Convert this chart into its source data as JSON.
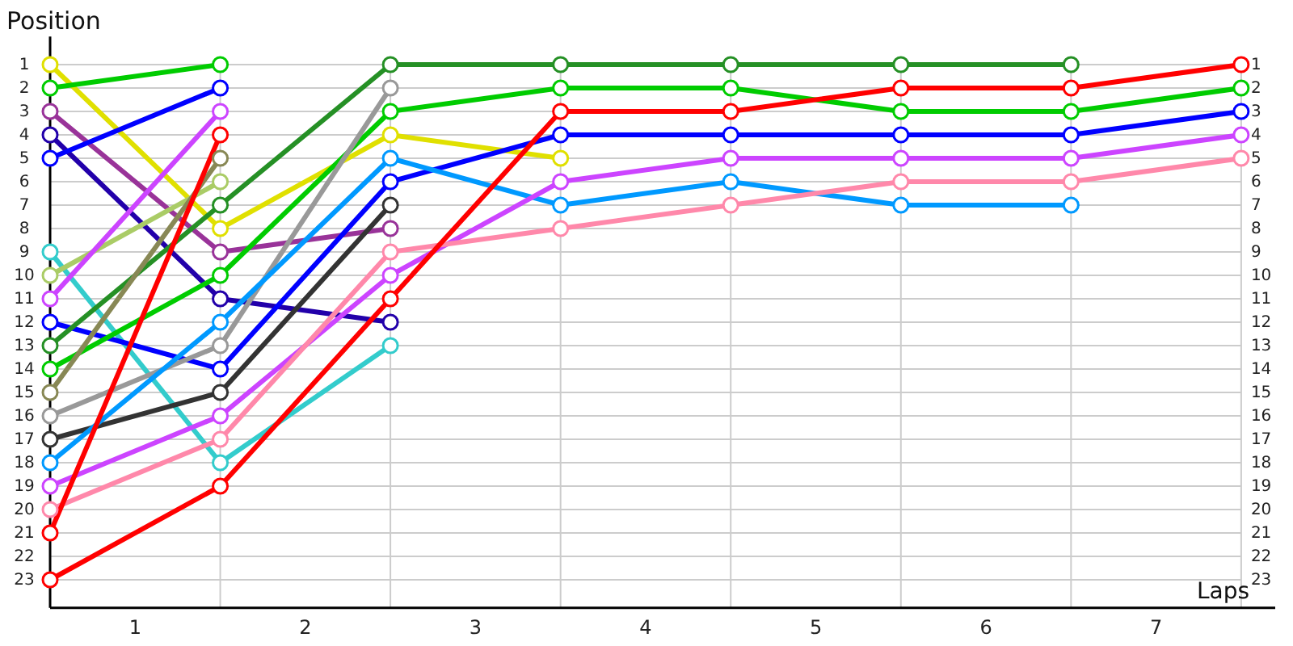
{
  "chart_data": {
    "type": "line",
    "xlabel": "Laps",
    "ylabel": "Position",
    "x": [
      0,
      1,
      2,
      3,
      4,
      5,
      6,
      7
    ],
    "xlim": [
      0,
      7.2
    ],
    "xticks": [
      {
        "value": 0,
        "label": null
      },
      {
        "value": 0.5,
        "label": "1"
      },
      {
        "value": 1,
        "label": null
      },
      {
        "value": 1.5,
        "label": "2"
      },
      {
        "value": 2,
        "label": null
      },
      {
        "value": 2.5,
        "label": "3"
      },
      {
        "value": 3,
        "label": null
      },
      {
        "value": 3.5,
        "label": "4"
      },
      {
        "value": 4,
        "label": null
      },
      {
        "value": 4.5,
        "label": "5"
      },
      {
        "value": 5,
        "label": null
      },
      {
        "value": 5.5,
        "label": "6"
      },
      {
        "value": 6,
        "label": null
      },
      {
        "value": 6.5,
        "label": "7"
      },
      {
        "value": 7,
        "label": null
      }
    ],
    "ylim": [
      24.2,
      -0.2
    ],
    "yticks": [
      1,
      2,
      3,
      4,
      5,
      6,
      7,
      8,
      9,
      10,
      11,
      12,
      13,
      14,
      15,
      16,
      17,
      18,
      19,
      20,
      21,
      22,
      23
    ],
    "y2lim": [
      24.2,
      -0.2
    ],
    "y2ticks": [
      1,
      2,
      3,
      4,
      5,
      6,
      7,
      8,
      9,
      10,
      11,
      12,
      13,
      14,
      15,
      16,
      17,
      18,
      19,
      20,
      21,
      22,
      23
    ],
    "grid": true,
    "marker": "circle",
    "line_style": "solid",
    "series": [
      {
        "color": "#e0e000",
        "values": [
          1,
          8,
          4,
          5,
          null,
          null,
          null,
          null
        ]
      },
      {
        "color": "#00cc00",
        "values": [
          2,
          1,
          null,
          null,
          null,
          null,
          null,
          null
        ]
      },
      {
        "color": "#993399",
        "values": [
          3,
          9,
          8,
          null,
          null,
          null,
          null,
          null
        ]
      },
      {
        "color": "#2200aa",
        "values": [
          4,
          11,
          12,
          null,
          null,
          null,
          null,
          null
        ]
      },
      {
        "color": "#0000ff",
        "values": [
          5,
          2,
          null,
          null,
          null,
          null,
          null,
          null
        ]
      },
      {
        "color": "#33cccc",
        "values": [
          9,
          18,
          13,
          null,
          null,
          null,
          null,
          null
        ]
      },
      {
        "color": "#aacc66",
        "values": [
          10,
          6,
          null,
          null,
          null,
          null,
          null,
          null
        ]
      },
      {
        "color": "#cc44ff",
        "values": [
          11,
          3,
          null,
          null,
          null,
          null,
          null,
          null
        ]
      },
      {
        "color": "#0000ff",
        "values": [
          12,
          14,
          6,
          4,
          4,
          4,
          4,
          3
        ]
      },
      {
        "color": "#259025",
        "values": [
          13,
          7,
          1,
          1,
          1,
          1,
          1,
          null
        ]
      },
      {
        "color": "#00cc00",
        "values": [
          14,
          10,
          3,
          2,
          2,
          3,
          3,
          2
        ]
      },
      {
        "color": "#888855",
        "values": [
          15,
          5,
          null,
          null,
          null,
          null,
          null,
          null
        ]
      },
      {
        "color": "#999999",
        "values": [
          16,
          13,
          2,
          null,
          null,
          null,
          null,
          null
        ]
      },
      {
        "color": "#333333",
        "values": [
          17,
          15,
          7,
          null,
          null,
          null,
          null,
          null
        ]
      },
      {
        "color": "#0099ff",
        "values": [
          18,
          12,
          5,
          7,
          6,
          7,
          7,
          null
        ]
      },
      {
        "color": "#cc44ff",
        "values": [
          19,
          16,
          10,
          6,
          5,
          5,
          5,
          4
        ]
      },
      {
        "color": "#ff88aa",
        "values": [
          20,
          17,
          9,
          8,
          7,
          6,
          6,
          5
        ]
      },
      {
        "color": "#ff0000",
        "values": [
          21,
          4,
          null,
          null,
          null,
          null,
          null,
          null
        ]
      },
      {
        "color": "#ff0000",
        "values": [
          23,
          19,
          11,
          3,
          3,
          2,
          2,
          1
        ]
      }
    ]
  }
}
